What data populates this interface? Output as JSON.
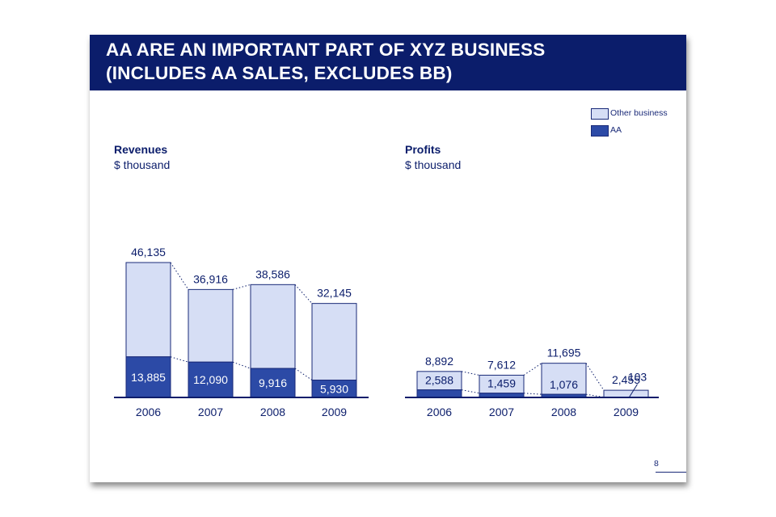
{
  "header": {
    "title_line1": "AA ARE AN IMPORTANT PART OF XYZ BUSINESS",
    "title_line2": "(INCLUDES AA SALES, EXCLUDES BB)"
  },
  "legend": {
    "items": [
      {
        "label": "Other business",
        "color": "#d6def5"
      },
      {
        "label": "AA",
        "color": "#2c4aa6"
      }
    ]
  },
  "colors": {
    "other": "#d6def5",
    "aa": "#2c4aa6",
    "border": "#1a2a78",
    "text": "#0b1d6b"
  },
  "page_number": "8",
  "chart_data": [
    {
      "type": "bar",
      "stacked": true,
      "title": "Revenues",
      "subtitle": "$ thousand",
      "categories": [
        "2006",
        "2007",
        "2008",
        "2009"
      ],
      "series": [
        {
          "name": "AA",
          "values": [
            13885,
            12090,
            9916,
            5930
          ]
        },
        {
          "name": "Other business",
          "values": [
            32250,
            24826,
            28670,
            26215
          ]
        }
      ],
      "totals": [
        46135,
        36916,
        38586,
        32145
      ],
      "total_labels": [
        "46,135",
        "36,916",
        "38,586",
        "32,145"
      ],
      "aa_labels": [
        "13,885",
        "12,090",
        "9,916",
        "5,930"
      ],
      "ylim": [
        0,
        46135
      ],
      "grid": false,
      "connectors": "dotted"
    },
    {
      "type": "bar",
      "stacked": true,
      "title": "Profits",
      "subtitle": "$ thousand",
      "categories": [
        "2006",
        "2007",
        "2008",
        "2009"
      ],
      "series": [
        {
          "name": "AA",
          "values": [
            2588,
            1459,
            1076,
            103
          ]
        },
        {
          "name": "Other business",
          "values": [
            6304,
            6153,
            10619,
            2352
          ]
        }
      ],
      "totals": [
        8892,
        7612,
        11695,
        2455
      ],
      "total_labels": [
        "8,892",
        "7,612",
        "11,695",
        "2,455"
      ],
      "aa_labels": [
        "2,588",
        "1,459",
        "1,076",
        "103"
      ],
      "ylim": [
        0,
        46135
      ],
      "grid": false,
      "connectors": "dotted"
    }
  ]
}
